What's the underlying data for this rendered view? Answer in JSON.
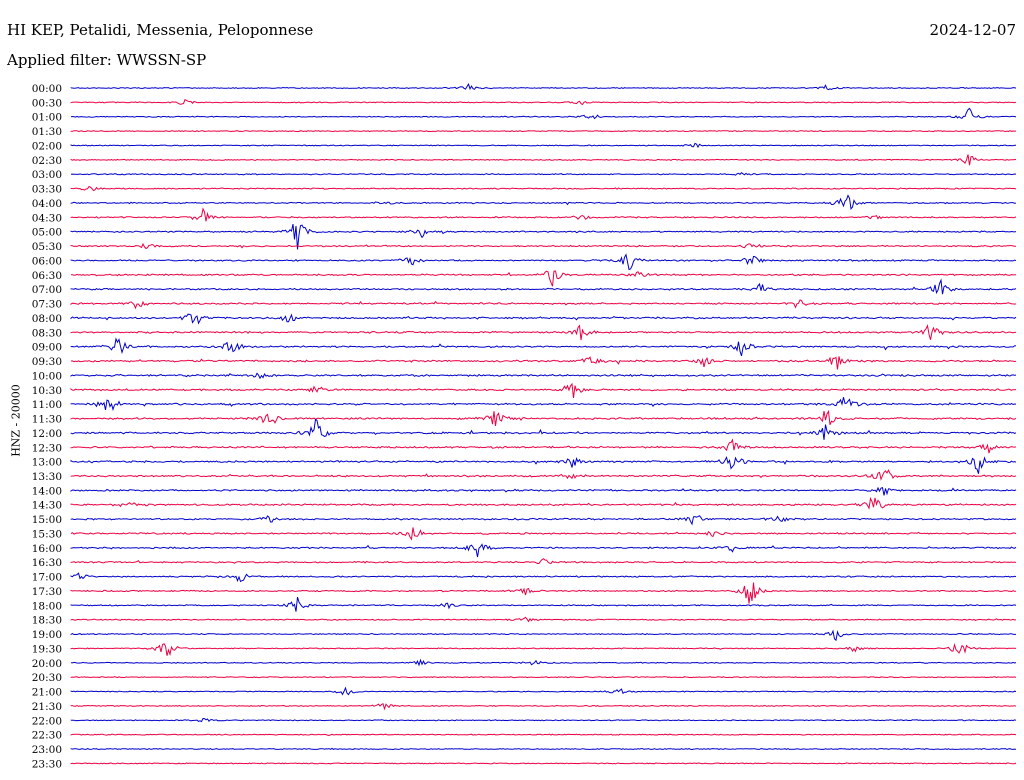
{
  "header": {
    "station": "HI KEP, Petalidi, Messenia, Peloponnese",
    "date": "2024-12-07",
    "filter_label": "Applied filter:",
    "filter_value": "WWSSN-SP"
  },
  "chart_data": {
    "type": "line",
    "title": "HI KEP, Petalidi, Messenia, Peloponnese",
    "ylabel": "HNZ - 20000",
    "colors": [
      "#0000cc",
      "#ee0044"
    ],
    "rows": [
      {
        "time": "00:00",
        "events": [
          [
            0.42,
            0.5
          ],
          [
            0.8,
            0.4
          ]
        ]
      },
      {
        "time": "00:30",
        "events": [
          [
            0.12,
            0.4
          ],
          [
            0.54,
            0.3
          ]
        ]
      },
      {
        "time": "01:00",
        "events": [
          [
            0.55,
            0.6
          ],
          [
            0.95,
            1.2
          ]
        ]
      },
      {
        "time": "01:30",
        "events": []
      },
      {
        "time": "02:00",
        "events": [
          [
            0.66,
            0.3
          ]
        ]
      },
      {
        "time": "02:30",
        "events": [
          [
            0.95,
            0.8
          ]
        ]
      },
      {
        "time": "03:00",
        "events": [
          [
            0.71,
            0.3
          ]
        ]
      },
      {
        "time": "03:30",
        "events": [
          [
            0.02,
            0.4
          ]
        ]
      },
      {
        "time": "04:00",
        "events": [
          [
            0.82,
            2.2
          ],
          [
            0.33,
            0.3
          ]
        ]
      },
      {
        "time": "04:30",
        "events": [
          [
            0.14,
            1.8
          ],
          [
            0.54,
            0.4
          ],
          [
            0.85,
            0.5
          ]
        ]
      },
      {
        "time": "05:00",
        "events": [
          [
            0.24,
            2.4
          ],
          [
            0.37,
            1.0
          ]
        ]
      },
      {
        "time": "05:30",
        "events": [
          [
            0.08,
            0.5
          ],
          [
            0.72,
            0.6
          ]
        ]
      },
      {
        "time": "06:00",
        "events": [
          [
            0.59,
            1.5
          ],
          [
            0.36,
            0.8
          ],
          [
            0.72,
            0.9
          ]
        ]
      },
      {
        "time": "06:30",
        "events": [
          [
            0.51,
            1.5
          ],
          [
            0.6,
            0.7
          ]
        ]
      },
      {
        "time": "07:00",
        "events": [
          [
            0.92,
            1.6
          ],
          [
            0.73,
            0.7
          ]
        ]
      },
      {
        "time": "07:30",
        "events": [
          [
            0.07,
            0.7
          ],
          [
            0.77,
            0.7
          ]
        ]
      },
      {
        "time": "08:00",
        "events": [
          [
            0.13,
            1.5
          ],
          [
            0.23,
            0.8
          ]
        ]
      },
      {
        "time": "08:30",
        "events": [
          [
            0.54,
            1.2
          ],
          [
            0.91,
            1.5
          ]
        ]
      },
      {
        "time": "09:00",
        "events": [
          [
            0.05,
            1.4
          ],
          [
            0.17,
            1.2
          ],
          [
            0.71,
            1.6
          ]
        ]
      },
      {
        "time": "09:30",
        "events": [
          [
            0.55,
            1.0
          ],
          [
            0.81,
            1.2
          ],
          [
            0.67,
            0.8
          ]
        ]
      },
      {
        "time": "10:00",
        "events": [
          [
            0.2,
            0.4
          ]
        ]
      },
      {
        "time": "10:30",
        "events": [
          [
            0.53,
            1.5
          ],
          [
            0.26,
            0.6
          ]
        ]
      },
      {
        "time": "11:00",
        "events": [
          [
            0.04,
            1.8
          ],
          [
            0.82,
            1.4
          ]
        ]
      },
      {
        "time": "11:30",
        "events": [
          [
            0.21,
            1.5
          ],
          [
            0.45,
            1.5
          ],
          [
            0.8,
            1.6
          ]
        ]
      },
      {
        "time": "12:00",
        "events": [
          [
            0.26,
            2.3
          ],
          [
            0.8,
            1.6
          ]
        ]
      },
      {
        "time": "12:30",
        "events": [
          [
            0.7,
            1.0
          ],
          [
            0.97,
            0.6
          ]
        ]
      },
      {
        "time": "13:00",
        "events": [
          [
            0.7,
            2.3
          ],
          [
            0.96,
            1.6
          ],
          [
            0.53,
            0.8
          ]
        ]
      },
      {
        "time": "13:30",
        "events": [
          [
            0.86,
            1.6
          ],
          [
            0.53,
            0.6
          ]
        ]
      },
      {
        "time": "14:00",
        "events": [
          [
            0.86,
            0.8
          ]
        ]
      },
      {
        "time": "14:30",
        "events": [
          [
            0.85,
            1.7
          ],
          [
            0.06,
            0.7
          ]
        ]
      },
      {
        "time": "15:00",
        "events": [
          [
            0.66,
            1.0
          ],
          [
            0.21,
            0.5
          ],
          [
            0.75,
            0.6
          ]
        ]
      },
      {
        "time": "15:30",
        "events": [
          [
            0.36,
            1.8
          ],
          [
            0.68,
            0.5
          ]
        ]
      },
      {
        "time": "16:00",
        "events": [
          [
            0.43,
            1.4
          ],
          [
            0.7,
            0.5
          ]
        ]
      },
      {
        "time": "16:30",
        "events": [
          [
            0.5,
            0.4
          ]
        ]
      },
      {
        "time": "17:00",
        "events": [
          [
            0.18,
            0.9
          ],
          [
            0.01,
            0.6
          ]
        ]
      },
      {
        "time": "17:30",
        "events": [
          [
            0.72,
            2.5
          ],
          [
            0.48,
            0.6
          ]
        ]
      },
      {
        "time": "18:00",
        "events": [
          [
            0.24,
            1.3
          ],
          [
            0.4,
            0.4
          ]
        ]
      },
      {
        "time": "18:30",
        "events": [
          [
            0.48,
            0.4
          ]
        ]
      },
      {
        "time": "19:00",
        "events": [
          [
            0.81,
            0.8
          ]
        ]
      },
      {
        "time": "19:30",
        "events": [
          [
            0.1,
            1.7
          ],
          [
            0.94,
            1.3
          ],
          [
            0.83,
            0.5
          ]
        ]
      },
      {
        "time": "20:00",
        "events": [
          [
            0.37,
            0.5
          ],
          [
            0.49,
            0.4
          ]
        ]
      },
      {
        "time": "20:30",
        "events": []
      },
      {
        "time": "21:00",
        "events": [
          [
            0.29,
            0.7
          ],
          [
            0.58,
            0.5
          ]
        ]
      },
      {
        "time": "21:30",
        "events": [
          [
            0.33,
            0.5
          ]
        ]
      },
      {
        "time": "22:00",
        "events": [
          [
            0.14,
            0.4
          ]
        ]
      },
      {
        "time": "22:30",
        "events": []
      },
      {
        "time": "23:00",
        "events": []
      },
      {
        "time": "23:30",
        "events": []
      }
    ]
  }
}
